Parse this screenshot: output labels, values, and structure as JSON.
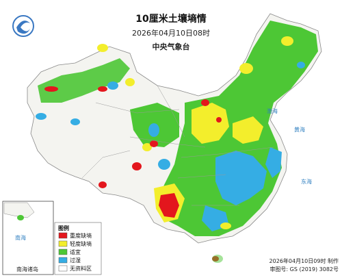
{
  "header": {
    "title": "10厘米土壤墒情",
    "time": "2026年04月10日08时",
    "issuer": "中央气象台"
  },
  "legend": {
    "title": "图例",
    "items": [
      {
        "label": "重度缺墒",
        "color": "#e3161d"
      },
      {
        "label": "轻度缺墒",
        "color": "#f3ee2c"
      },
      {
        "label": "适宜",
        "color": "#4dc735"
      },
      {
        "label": "过湿",
        "color": "#35ade4"
      },
      {
        "label": "无资料区",
        "color": "#ffffff"
      }
    ]
  },
  "labels": {
    "huanghai": "黄海",
    "donghai": "东海",
    "bohai": "渤海",
    "nanhai": "南海"
  },
  "inset": {
    "label": "南海诸岛"
  },
  "footer": {
    "made": "2026年04月10日09时 制作",
    "approval": "审图号: GS (2019) 3082号"
  }
}
